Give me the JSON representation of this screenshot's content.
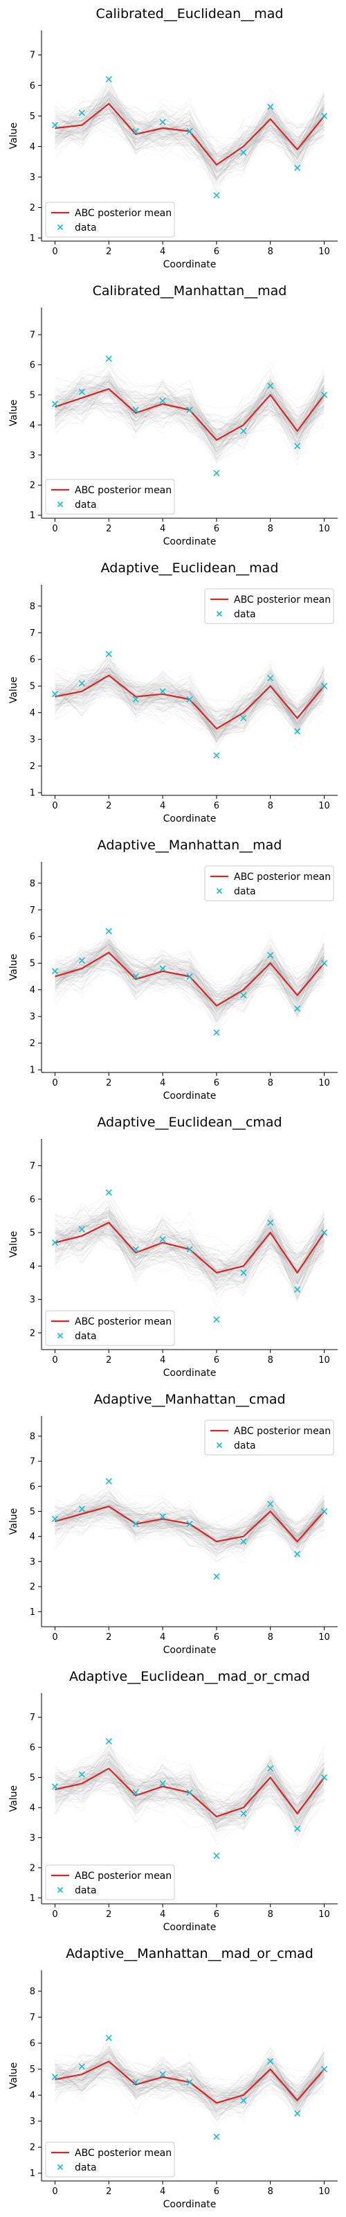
{
  "colors": {
    "mean_line": "#d62728",
    "data_marker": "#17becf",
    "sample_lines": "#7f7f7f",
    "axis": "#000000"
  },
  "chart_data": [
    {
      "type": "line",
      "title": "Calibrated__Euclidean__mad",
      "xlabel": "Coordinate",
      "ylabel": "Value",
      "x": [
        0,
        1,
        2,
        3,
        4,
        5,
        6,
        7,
        8,
        9,
        10
      ],
      "xlim": [
        -0.5,
        10.5
      ],
      "ylim": [
        0.9,
        7.8
      ],
      "xticks": [
        0,
        2,
        4,
        6,
        8,
        10
      ],
      "yticks": [
        1,
        2,
        3,
        4,
        5,
        6,
        7
      ],
      "grid": false,
      "legend_position": "lower-left",
      "series": [
        {
          "name": "ABC posterior mean",
          "kind": "line",
          "values": [
            4.6,
            4.7,
            5.4,
            4.4,
            4.6,
            4.5,
            3.4,
            4.0,
            4.9,
            3.9,
            5.0
          ]
        },
        {
          "name": "data",
          "kind": "marker",
          "values": [
            4.7,
            5.1,
            6.2,
            4.5,
            4.8,
            4.5,
            2.4,
            3.8,
            5.3,
            3.3,
            5.0
          ]
        }
      ]
    },
    {
      "type": "line",
      "title": "Calibrated__Manhattan__mad",
      "xlabel": "Coordinate",
      "ylabel": "Value",
      "x": [
        0,
        1,
        2,
        3,
        4,
        5,
        6,
        7,
        8,
        9,
        10
      ],
      "xlim": [
        -0.5,
        10.5
      ],
      "ylim": [
        0.9,
        7.9
      ],
      "xticks": [
        0,
        2,
        4,
        6,
        8,
        10
      ],
      "yticks": [
        1,
        2,
        3,
        4,
        5,
        6,
        7
      ],
      "grid": false,
      "legend_position": "lower-left",
      "series": [
        {
          "name": "ABC posterior mean",
          "kind": "line",
          "values": [
            4.6,
            4.9,
            5.2,
            4.4,
            4.7,
            4.5,
            3.5,
            4.0,
            5.0,
            3.8,
            5.0
          ]
        },
        {
          "name": "data",
          "kind": "marker",
          "values": [
            4.7,
            5.1,
            6.2,
            4.5,
            4.8,
            4.5,
            2.4,
            3.8,
            5.3,
            3.3,
            5.0
          ]
        }
      ]
    },
    {
      "type": "line",
      "title": "Adaptive__Euclidean__mad",
      "xlabel": "Coordinate",
      "ylabel": "Value",
      "x": [
        0,
        1,
        2,
        3,
        4,
        5,
        6,
        7,
        8,
        9,
        10
      ],
      "xlim": [
        -0.5,
        10.5
      ],
      "ylim": [
        0.9,
        8.8
      ],
      "xticks": [
        0,
        2,
        4,
        6,
        8,
        10
      ],
      "yticks": [
        1,
        2,
        3,
        4,
        5,
        6,
        7,
        8
      ],
      "grid": false,
      "legend_position": "upper-right",
      "series": [
        {
          "name": "ABC posterior mean",
          "kind": "line",
          "values": [
            4.6,
            4.8,
            5.4,
            4.6,
            4.7,
            4.5,
            3.4,
            4.0,
            5.0,
            3.8,
            5.0
          ]
        },
        {
          "name": "data",
          "kind": "marker",
          "values": [
            4.7,
            5.1,
            6.2,
            4.5,
            4.8,
            4.5,
            2.4,
            3.8,
            5.3,
            3.3,
            5.0
          ]
        }
      ]
    },
    {
      "type": "line",
      "title": "Adaptive__Manhattan__mad",
      "xlabel": "Coordinate",
      "ylabel": "Value",
      "x": [
        0,
        1,
        2,
        3,
        4,
        5,
        6,
        7,
        8,
        9,
        10
      ],
      "xlim": [
        -0.5,
        10.5
      ],
      "ylim": [
        0.9,
        8.8
      ],
      "xticks": [
        0,
        2,
        4,
        6,
        8,
        10
      ],
      "yticks": [
        1,
        2,
        3,
        4,
        5,
        6,
        7,
        8
      ],
      "grid": false,
      "legend_position": "upper-right",
      "series": [
        {
          "name": "ABC posterior mean",
          "kind": "line",
          "values": [
            4.5,
            4.8,
            5.4,
            4.4,
            4.7,
            4.5,
            3.4,
            4.0,
            5.0,
            3.8,
            5.0
          ]
        },
        {
          "name": "data",
          "kind": "marker",
          "values": [
            4.7,
            5.1,
            6.2,
            4.5,
            4.8,
            4.5,
            2.4,
            3.8,
            5.3,
            3.3,
            5.0
          ]
        }
      ]
    },
    {
      "type": "line",
      "title": "Adaptive__Euclidean__cmad",
      "xlabel": "Coordinate",
      "ylabel": "Value",
      "x": [
        0,
        1,
        2,
        3,
        4,
        5,
        6,
        7,
        8,
        9,
        10
      ],
      "xlim": [
        -0.5,
        10.5
      ],
      "ylim": [
        1.5,
        7.8
      ],
      "xticks": [
        0,
        2,
        4,
        6,
        8,
        10
      ],
      "yticks": [
        2,
        3,
        4,
        5,
        6,
        7
      ],
      "grid": false,
      "legend_position": "lower-left",
      "series": [
        {
          "name": "ABC posterior mean",
          "kind": "line",
          "values": [
            4.7,
            4.9,
            5.3,
            4.4,
            4.7,
            4.5,
            3.8,
            4.0,
            5.0,
            3.8,
            5.0
          ]
        },
        {
          "name": "data",
          "kind": "marker",
          "values": [
            4.7,
            5.1,
            6.2,
            4.5,
            4.8,
            4.5,
            2.4,
            3.8,
            5.3,
            3.3,
            5.0
          ]
        }
      ]
    },
    {
      "type": "line",
      "title": "Adaptive__Manhattan__cmad",
      "xlabel": "Coordinate",
      "ylabel": "Value",
      "x": [
        0,
        1,
        2,
        3,
        4,
        5,
        6,
        7,
        8,
        9,
        10
      ],
      "xlim": [
        -0.5,
        10.5
      ],
      "ylim": [
        0.4,
        8.8
      ],
      "xticks": [
        0,
        2,
        4,
        6,
        8,
        10
      ],
      "yticks": [
        1,
        2,
        3,
        4,
        5,
        6,
        7,
        8
      ],
      "grid": false,
      "legend_position": "upper-right",
      "series": [
        {
          "name": "ABC posterior mean",
          "kind": "line",
          "values": [
            4.6,
            4.9,
            5.2,
            4.5,
            4.7,
            4.5,
            3.8,
            4.0,
            5.0,
            3.8,
            5.0
          ]
        },
        {
          "name": "data",
          "kind": "marker",
          "values": [
            4.7,
            5.1,
            6.2,
            4.5,
            4.8,
            4.5,
            2.4,
            3.8,
            5.3,
            3.3,
            5.0
          ]
        }
      ]
    },
    {
      "type": "line",
      "title": "Adaptive__Euclidean__mad_or_cmad",
      "xlabel": "Coordinate",
      "ylabel": "Value",
      "x": [
        0,
        1,
        2,
        3,
        4,
        5,
        6,
        7,
        8,
        9,
        10
      ],
      "xlim": [
        -0.5,
        10.5
      ],
      "ylim": [
        0.8,
        7.8
      ],
      "xticks": [
        0,
        2,
        4,
        6,
        8,
        10
      ],
      "yticks": [
        1,
        2,
        3,
        4,
        5,
        6,
        7
      ],
      "grid": false,
      "legend_position": "lower-left",
      "series": [
        {
          "name": "ABC posterior mean",
          "kind": "line",
          "values": [
            4.6,
            4.8,
            5.3,
            4.4,
            4.7,
            4.5,
            3.7,
            4.0,
            5.0,
            3.8,
            5.0
          ]
        },
        {
          "name": "data",
          "kind": "marker",
          "values": [
            4.7,
            5.1,
            6.2,
            4.5,
            4.8,
            4.5,
            2.4,
            3.8,
            5.3,
            3.3,
            5.0
          ]
        }
      ]
    },
    {
      "type": "line",
      "title": "Adaptive__Manhattan__mad_or_cmad",
      "xlabel": "Coordinate",
      "ylabel": "Value",
      "x": [
        0,
        1,
        2,
        3,
        4,
        5,
        6,
        7,
        8,
        9,
        10
      ],
      "xlim": [
        -0.5,
        10.5
      ],
      "ylim": [
        0.7,
        8.8
      ],
      "xticks": [
        0,
        2,
        4,
        6,
        8,
        10
      ],
      "yticks": [
        1,
        2,
        3,
        4,
        5,
        6,
        7,
        8
      ],
      "grid": false,
      "legend_position": "lower-left",
      "series": [
        {
          "name": "ABC posterior mean",
          "kind": "line",
          "values": [
            4.6,
            4.8,
            5.3,
            4.4,
            4.7,
            4.5,
            3.7,
            4.0,
            5.0,
            3.8,
            5.0
          ]
        },
        {
          "name": "data",
          "kind": "marker",
          "values": [
            4.7,
            5.1,
            6.2,
            4.5,
            4.8,
            4.5,
            2.4,
            3.8,
            5.3,
            3.3,
            5.0
          ]
        }
      ]
    }
  ]
}
